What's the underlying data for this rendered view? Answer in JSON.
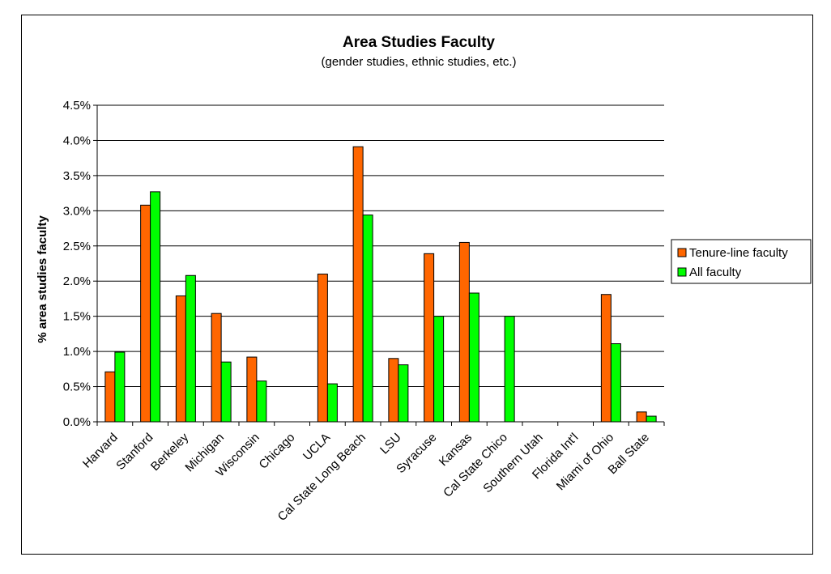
{
  "chart_data": {
    "type": "bar",
    "title": "Area Studies Faculty",
    "subtitle": "(gender studies, ethnic studies, etc.)",
    "xlabel": "",
    "ylabel": "% area studies faculty",
    "ylim": [
      0,
      4.5
    ],
    "y_ticks": [
      "0.0%",
      "0.5%",
      "1.0%",
      "1.5%",
      "2.0%",
      "2.5%",
      "3.0%",
      "3.5%",
      "4.0%",
      "4.5%"
    ],
    "grid": true,
    "legend_position": "right",
    "categories": [
      "Harvard",
      "Stanford",
      "Berkeley",
      "Michigan",
      "Wisconsin",
      "Chicago",
      "UCLA",
      "Cal State Long Beach",
      "LSU",
      "Syracuse",
      "Kansas",
      "Cal State Chico",
      "Southern Utah",
      "Florida Int'l",
      "Miami of Ohio",
      "Ball State"
    ],
    "series": [
      {
        "name": "Tenure-line faculty",
        "color": "#ff6600",
        "values": [
          0.71,
          3.08,
          1.79,
          1.54,
          0.92,
          0,
          2.1,
          3.91,
          0.9,
          2.39,
          2.55,
          0,
          0,
          0,
          1.81,
          0.14
        ]
      },
      {
        "name": "All faculty",
        "color": "#00ff00",
        "values": [
          0.99,
          3.27,
          2.08,
          0.85,
          0.58,
          0,
          0.54,
          2.94,
          0.81,
          1.5,
          1.83,
          1.5,
          0,
          0,
          1.11,
          0.08
        ]
      }
    ]
  }
}
